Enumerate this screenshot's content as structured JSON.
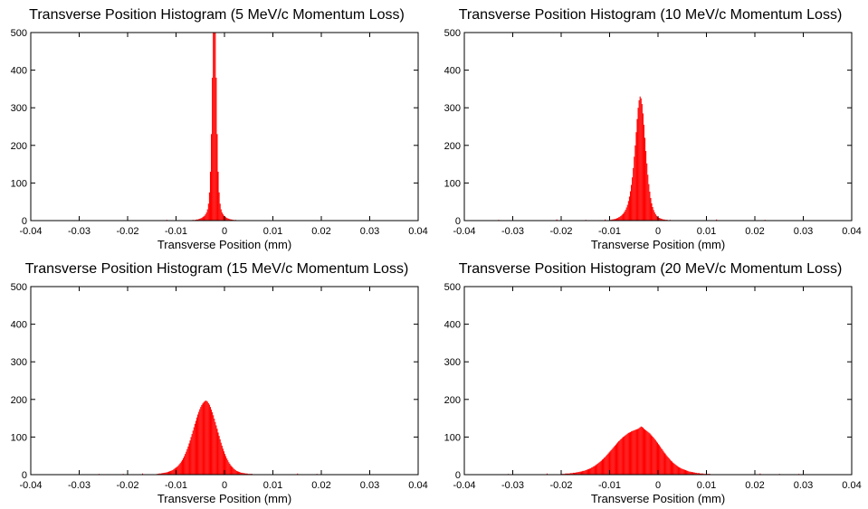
{
  "chart_data": [
    {
      "type": "bar",
      "title": "Transverse Position Histogram (5 MeV/c Momentum Loss)",
      "xlabel": "Transverse Position (mm)",
      "ylabel": "",
      "xlim": [
        -0.04,
        0.04
      ],
      "ylim": [
        0,
        500
      ],
      "xticks": [
        "-0.04",
        "-0.03",
        "-0.02",
        "-0.01",
        "0",
        "0.01",
        "0.02",
        "0.03",
        "0.04"
      ],
      "yticks": [
        "0",
        "100",
        "200",
        "300",
        "400",
        "500"
      ],
      "color": "#ff0000",
      "bins": {
        "start": -0.007,
        "width": 0.0002,
        "values": [
          1,
          1,
          2,
          1,
          2,
          2,
          3,
          3,
          4,
          5,
          6,
          7,
          9,
          11,
          13,
          17,
          22,
          30,
          45,
          75,
          130,
          230,
          380,
          500,
          500,
          500,
          380,
          230,
          130,
          75,
          45,
          30,
          22,
          17,
          13,
          11,
          9,
          7,
          6,
          5,
          4,
          3,
          3,
          2,
          2,
          1,
          2,
          1,
          1,
          1
        ]
      },
      "tails": [
        {
          "x": -0.035,
          "y": 1
        },
        {
          "x": -0.012,
          "y": 2
        },
        {
          "x": -0.009,
          "y": 1
        },
        {
          "x": 0.01,
          "y": 1
        },
        {
          "x": 0.016,
          "y": 1
        }
      ]
    },
    {
      "type": "bar",
      "title": "Transverse Position Histogram (10 MeV/c Momentum Loss)",
      "xlabel": "Transverse Position (mm)",
      "ylabel": "",
      "xlim": [
        -0.04,
        0.04
      ],
      "ylim": [
        0,
        500
      ],
      "xticks": [
        "-0.04",
        "-0.03",
        "-0.02",
        "-0.01",
        "0",
        "0.01",
        "0.02",
        "0.03",
        "0.04"
      ],
      "yticks": [
        "0",
        "100",
        "200",
        "300",
        "400",
        "500"
      ],
      "color": "#ff0000",
      "bins": {
        "start": -0.01,
        "width": 0.0002,
        "values": [
          2,
          2,
          3,
          3,
          4,
          4,
          5,
          6,
          7,
          9,
          10,
          12,
          14,
          17,
          20,
          24,
          29,
          35,
          42,
          52,
          64,
          78,
          95,
          115,
          140,
          170,
          200,
          235,
          270,
          300,
          320,
          330,
          325,
          310,
          285,
          255,
          220,
          185,
          152,
          122,
          97,
          77,
          60,
          46,
          36,
          28,
          22,
          17,
          13,
          10,
          8,
          7,
          6,
          5,
          4,
          3,
          3,
          2,
          2,
          2,
          1,
          1,
          2,
          1,
          1,
          1,
          1,
          1,
          1,
          1,
          1,
          1,
          1,
          1,
          1,
          1,
          1,
          1,
          1,
          1,
          1,
          1,
          1,
          1,
          1,
          1,
          1,
          1,
          1,
          1,
          1,
          1,
          1,
          1,
          1,
          1,
          1,
          1,
          1,
          1
        ]
      },
      "tails": [
        {
          "x": -0.033,
          "y": 2
        },
        {
          "x": -0.027,
          "y": 1
        },
        {
          "x": -0.021,
          "y": 3
        },
        {
          "x": -0.015,
          "y": 2
        },
        {
          "x": -0.011,
          "y": 3
        },
        {
          "x": 0.012,
          "y": 3
        },
        {
          "x": 0.018,
          "y": 1
        },
        {
          "x": 0.022,
          "y": 2
        }
      ]
    },
    {
      "type": "bar",
      "title": "Transverse Position Histogram (15 MeV/c Momentum Loss)",
      "xlabel": "Transverse Position (mm)",
      "ylabel": "",
      "xlim": [
        -0.04,
        0.04
      ],
      "ylim": [
        0,
        500
      ],
      "xticks": [
        "-0.04",
        "-0.03",
        "-0.02",
        "-0.01",
        "0",
        "0.01",
        "0.02",
        "0.03",
        "0.04"
      ],
      "yticks": [
        "0",
        "100",
        "200",
        "300",
        "400",
        "500"
      ],
      "color": "#ff0000",
      "bins": {
        "start": -0.014,
        "width": 0.0002,
        "values": [
          2,
          2,
          3,
          3,
          3,
          4,
          4,
          5,
          5,
          6,
          6,
          7,
          8,
          9,
          10,
          11,
          12,
          14,
          16,
          18,
          20,
          22,
          25,
          28,
          31,
          35,
          39,
          44,
          49,
          55,
          61,
          68,
          75,
          83,
          91,
          100,
          108,
          117,
          126,
          135,
          143,
          152,
          160,
          167,
          174,
          180,
          185,
          189,
          192,
          195,
          197,
          196,
          194,
          190,
          186,
          180,
          173,
          166,
          158,
          149,
          140,
          131,
          122,
          112,
          103,
          94,
          85,
          77,
          69,
          62,
          55,
          49,
          43,
          38,
          33,
          29,
          25,
          22,
          19,
          16,
          14,
          12,
          10,
          9,
          8,
          7,
          6,
          5,
          5,
          4,
          4,
          3,
          3,
          3,
          2,
          2,
          2,
          2,
          2,
          1,
          1,
          1,
          1,
          1,
          1,
          1,
          1,
          1,
          1,
          1,
          1,
          1,
          1,
          1,
          1,
          1,
          1,
          1,
          1,
          1,
          1,
          1,
          1,
          1,
          1,
          1,
          1,
          1,
          1,
          1,
          1,
          1,
          1,
          1,
          1,
          1,
          1,
          1,
          1,
          1
        ]
      },
      "tails": [
        {
          "x": -0.035,
          "y": 1
        },
        {
          "x": -0.03,
          "y": 1
        },
        {
          "x": -0.026,
          "y": 2
        },
        {
          "x": -0.021,
          "y": 2
        },
        {
          "x": -0.017,
          "y": 3
        },
        {
          "x": 0.015,
          "y": 3
        },
        {
          "x": 0.019,
          "y": 2
        },
        {
          "x": 0.024,
          "y": 1
        },
        {
          "x": 0.03,
          "y": 1
        }
      ]
    },
    {
      "type": "bar",
      "title": "Transverse Position Histogram (20 MeV/c Momentum Loss)",
      "xlabel": "Transverse Position (mm)",
      "ylabel": "",
      "xlim": [
        -0.04,
        0.04
      ],
      "ylim": [
        0,
        500
      ],
      "xticks": [
        "-0.04",
        "-0.03",
        "-0.02",
        "-0.01",
        "0",
        "0.01",
        "0.02",
        "0.03",
        "0.04"
      ],
      "yticks": [
        "0",
        "100",
        "200",
        "300",
        "400",
        "500"
      ],
      "color": "#ff0000",
      "bins": {
        "start": -0.02,
        "width": 0.0002,
        "values": [
          2,
          2,
          2,
          2,
          3,
          3,
          3,
          3,
          3,
          4,
          4,
          4,
          5,
          5,
          5,
          6,
          6,
          7,
          7,
          8,
          8,
          9,
          10,
          10,
          11,
          12,
          13,
          14,
          15,
          16,
          17,
          19,
          20,
          22,
          23,
          25,
          27,
          29,
          31,
          33,
          35,
          37,
          40,
          42,
          45,
          47,
          50,
          53,
          56,
          59,
          62,
          65,
          68,
          71,
          74,
          77,
          80,
          83,
          86,
          89,
          91,
          94,
          96,
          99,
          101,
          103,
          105,
          107,
          109,
          111,
          112,
          113,
          115,
          116,
          117,
          118,
          119,
          120,
          121,
          122,
          124,
          126,
          128,
          127,
          125,
          122,
          120,
          118,
          116,
          114,
          112,
          110,
          107,
          104,
          101,
          98,
          95,
          92,
          88,
          85,
          81,
          78,
          74,
          70,
          67,
          63,
          59,
          56,
          52,
          49,
          46,
          43,
          40,
          37,
          35,
          32,
          30,
          28,
          26,
          24,
          22,
          20,
          19,
          17,
          16,
          15,
          14,
          13,
          12,
          11,
          10,
          9,
          8,
          8,
          7,
          7,
          6,
          6,
          5,
          5,
          4,
          4,
          4,
          3,
          3,
          3,
          3,
          2,
          2,
          2,
          2,
          2,
          2,
          2,
          1,
          1,
          1,
          1,
          1,
          1,
          1,
          1,
          1,
          1,
          1,
          1,
          1,
          1,
          1,
          1,
          1,
          1,
          1,
          1,
          1,
          1,
          1,
          1,
          1,
          1,
          1,
          1,
          1,
          1,
          1,
          1,
          1,
          1,
          1,
          1,
          1,
          1,
          1,
          1,
          1,
          1,
          1,
          1,
          1,
          1,
          1,
          1
        ]
      },
      "tails": [
        {
          "x": -0.036,
          "y": 1
        },
        {
          "x": -0.031,
          "y": 2
        },
        {
          "x": -0.027,
          "y": 1
        },
        {
          "x": -0.023,
          "y": 3
        },
        {
          "x": 0.021,
          "y": 3
        },
        {
          "x": 0.025,
          "y": 2
        },
        {
          "x": 0.029,
          "y": 2
        },
        {
          "x": 0.033,
          "y": 1
        }
      ]
    }
  ]
}
